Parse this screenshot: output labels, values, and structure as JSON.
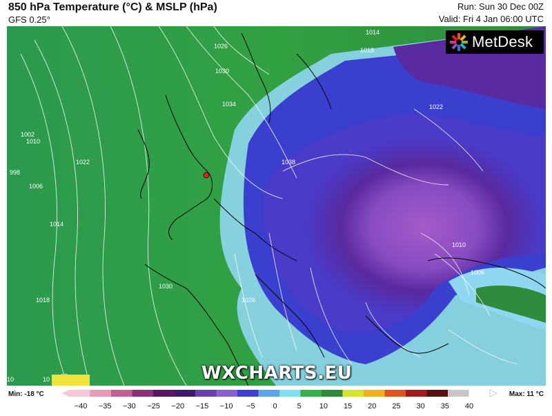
{
  "header": {
    "title": "850 hPa Temperature (°C) & MSLP (hPa)",
    "model": "GFS 0.25°",
    "run": "Run: Sun 30 Dec 00Z",
    "valid": "Valid: Fri 4 Jan 06:00 UTC"
  },
  "logo": {
    "text": "MetDesk"
  },
  "watermark": "WXCHARTS.EU",
  "map": {
    "marker_color": "#e8201c",
    "isobar_labels": [
      "1026",
      "1030",
      "1034",
      "1038",
      "1022",
      "1014",
      "1018",
      "1010",
      "1006",
      "998",
      "1002",
      "1022",
      "1030",
      "1026",
      "1014",
      "1018",
      "1010",
      "1006",
      "10",
      "10",
      "10"
    ],
    "colors": {
      "land_green": "#2f8c3c",
      "deep_purple": "#5a2aa0",
      "violet": "#a45bc9",
      "cold_blue": "#3a3fcf",
      "pale_blue": "#8fd6f0"
    }
  },
  "legend": {
    "min_label": "Min: -18 °C",
    "max_label": "Max: 11 °C",
    "ticks": [
      "−40",
      "−35",
      "−30",
      "−25",
      "−20",
      "−15",
      "−10",
      "−5",
      "0",
      "5",
      "10",
      "15",
      "20",
      "25",
      "30",
      "35",
      "40"
    ],
    "tick_values": [
      -40,
      -35,
      -30,
      -25,
      -20,
      -15,
      -10,
      -5,
      0,
      5,
      10,
      15,
      20,
      25,
      30,
      35,
      40
    ],
    "colors": [
      "#f4c9d6",
      "#e79ab8",
      "#c45e97",
      "#8e2f7a",
      "#5a1665",
      "#3e1a6c",
      "#6b3fb0",
      "#8a5fd1",
      "#3c3fcf",
      "#5aa6e8",
      "#7ee0f0",
      "#35b24a",
      "#2e8b39",
      "#d7e52a",
      "#f2b01c",
      "#e2541d",
      "#a41b1b",
      "#5b0f0f",
      "#c7c7c7",
      "#ffffff"
    ]
  }
}
